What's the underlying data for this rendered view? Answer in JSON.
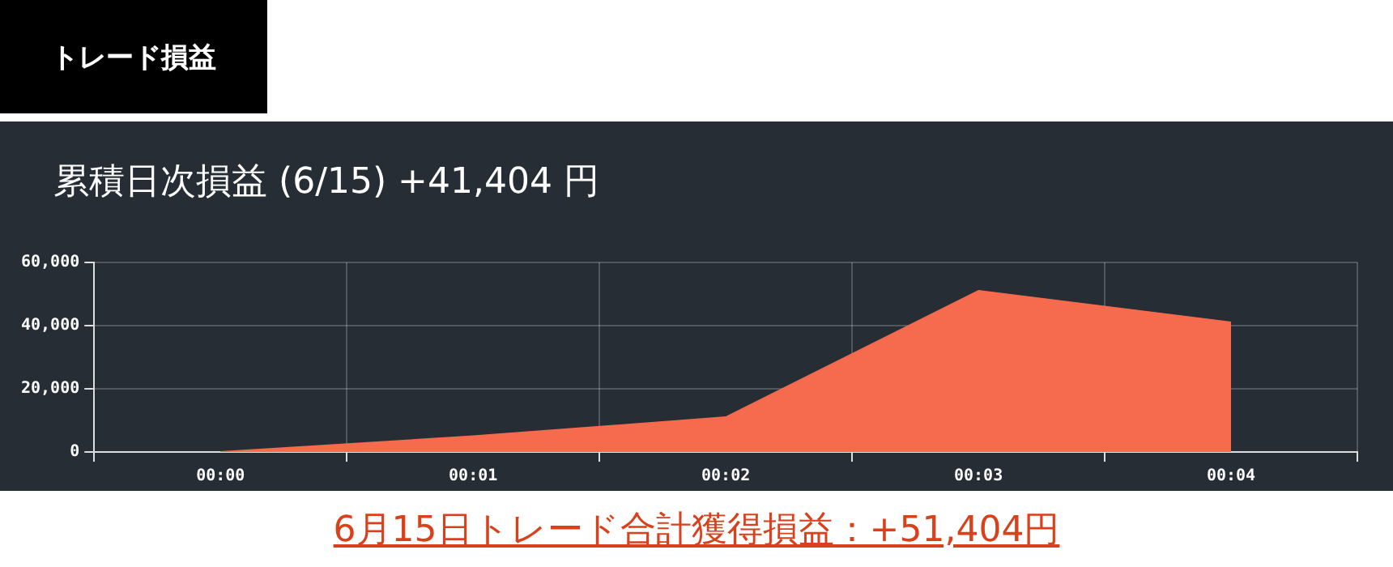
{
  "chart_data": {
    "type": "area",
    "title": "累積日次損益 (6/15) +41,404 円",
    "annotations": [
      "トレード損益",
      "6月15日トレード合計獲得損益：+51,404円"
    ],
    "categories": [
      "00:00",
      "00:01",
      "00:02",
      "00:03",
      "00:04"
    ],
    "series": [
      {
        "color": "#f66a4d",
        "values": [
          0,
          5000,
          11000,
          51000,
          41000
        ]
      }
    ],
    "ylim": [
      0,
      60000
    ],
    "yticks": [
      0,
      {
        "value": 20000,
        "label": "20,000"
      },
      {
        "value": 40000,
        "label": "40,000"
      },
      {
        "value": 60000,
        "label": "60,000"
      }
    ],
    "grid": true,
    "marker": "none",
    "legend": false
  }
}
